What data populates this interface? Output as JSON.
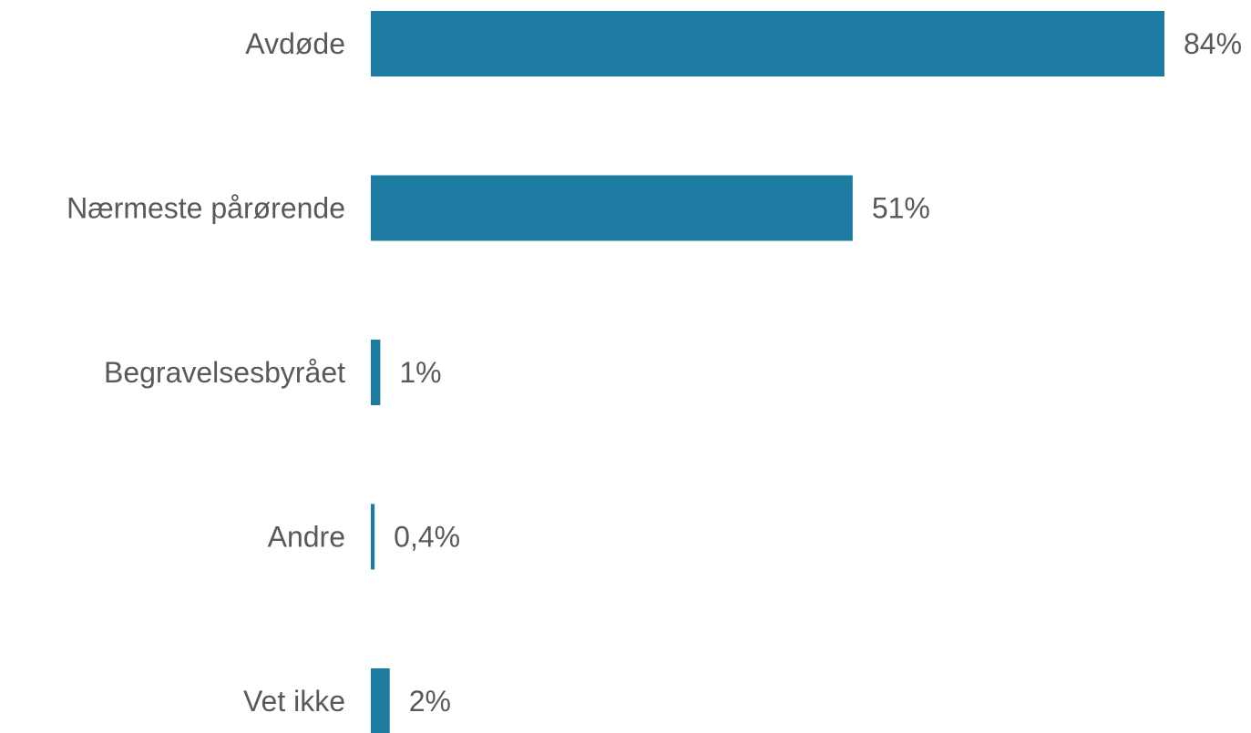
{
  "chart_data": {
    "type": "bar",
    "orientation": "horizontal",
    "title": "",
    "xlabel": "",
    "ylabel": "",
    "grid": false,
    "legend": "none",
    "bar_color": "#1E7CA3",
    "label_color": "#595959",
    "xlim": [
      0,
      84
    ],
    "categories": [
      "Avdøde",
      "Nærmeste pårørende",
      "Begravelsesbyrået",
      "Andre",
      "Vet ikke"
    ],
    "values": [
      84,
      51,
      1,
      0.4,
      2
    ],
    "value_labels": [
      "84%",
      "51%",
      "1%",
      "0,4%",
      "2%"
    ]
  }
}
